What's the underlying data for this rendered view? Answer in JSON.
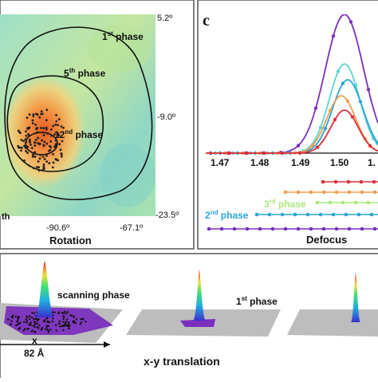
{
  "panel_left": {
    "xlabel": "Rotation",
    "x_ticks": [
      "-90.6º",
      "-67.1º"
    ],
    "y_ticks": [
      "5.2º",
      "-9.0º",
      "-23.5º"
    ],
    "edge_text": "th",
    "contours": [
      {
        "label_base": "1",
        "label_sup": "st",
        "label_rest": " phase"
      },
      {
        "label_base": "5",
        "label_sup": "th",
        "label_rest": " phase"
      },
      {
        "label_base": "12",
        "label_sup": "nd",
        "label_rest": " phase"
      }
    ]
  },
  "panel_right": {
    "letter": "c",
    "xlabel": "Defocus",
    "x_ticks": [
      "1.47",
      "1.48",
      "1.49",
      "1.50",
      "1."
    ],
    "curve_colors": [
      "#7b2fbe",
      "#5dd5d0",
      "#2aa7d8",
      "#f0a050",
      "#e0303a"
    ],
    "phase_labels": [
      {
        "base": "3",
        "sup": "rd",
        "rest": " phase",
        "color": "#aee87a"
      },
      {
        "base": "2",
        "sup": "nd",
        "rest": " phase",
        "color": "#2aa7d8"
      }
    ]
  },
  "panel_bottom": {
    "xlabel": "x-y translation",
    "labels": {
      "scanning": "scanning phase",
      "first_base": "1",
      "first_sup": "st",
      "first_rest": " phase",
      "x_axis": "x",
      "scale": "82 Å"
    }
  },
  "colors": {
    "purple": "#7b2fbe",
    "gray_plane": "#bdbdbd",
    "frame": "#555555"
  }
}
